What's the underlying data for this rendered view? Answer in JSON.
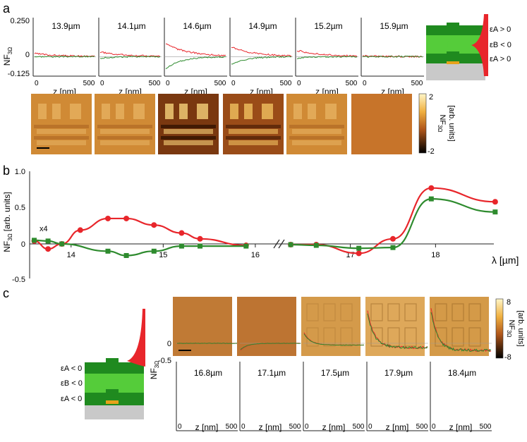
{
  "colors": {
    "red": "#e8262b",
    "green": "#2e8b2e",
    "dark_green": "#1f8a1f",
    "light_green": "#55cc3a",
    "substrate": "#c9c9c9",
    "gold": "#e6a21a"
  },
  "panel_a": {
    "letter": "a",
    "wavelengths": [
      "13.9µm",
      "14.1µm",
      "14.6µm",
      "14.9µm",
      "15.2µm",
      "15.9µm"
    ],
    "y_label": "NF",
    "y_label_sub": "3Ω",
    "y_ticks": [
      "0.250",
      "0",
      "-0.125"
    ],
    "x_ticks": [
      "0",
      "500"
    ],
    "x_label": "z [nm]",
    "colorbar": {
      "max": "2",
      "min": "-2",
      "label": "NF",
      "label_sub": "3Ω",
      "units": "[arb. units]"
    },
    "schematic_labels": [
      "εA > 0",
      "εB < 0",
      "εA > 0"
    ],
    "image_brightness": [
      0.55,
      0.6,
      0.9,
      0.85,
      0.7,
      0.25
    ]
  },
  "panel_b": {
    "letter": "b",
    "y_label": "NF",
    "y_label_sub": "3Ω",
    "y_units": "[arb. units]",
    "y_ticks": [
      "1.0",
      "0.5",
      "0",
      "-0.5"
    ],
    "x_label": "λ [µm]",
    "annotation": "x4",
    "x_ticks_left": [
      "14",
      "15",
      "16"
    ],
    "x_ticks_right": [
      "17",
      "18"
    ]
  },
  "panel_c": {
    "letter": "c",
    "wavelengths": [
      "16.8µm",
      "17.1µm",
      "17.5µm",
      "17.9µm",
      "18.4µm"
    ],
    "y_label": "NF",
    "y_label_sub": "3Ω",
    "y_ticks": [
      "0",
      "-0.5"
    ],
    "x_ticks": [
      "0",
      "500"
    ],
    "x_label": "z [nm]",
    "colorbar": {
      "max": "8",
      "min": "-8",
      "label": "NF",
      "label_sub": "3Ω",
      "units": "[arb. units]"
    },
    "schematic_labels": [
      "εA < 0",
      "εB < 0",
      "εA < 0"
    ],
    "image_brightness": [
      0.45,
      0.42,
      0.6,
      0.75,
      0.65
    ]
  },
  "chart_data": [
    {
      "type": "scatter",
      "title": "",
      "xlabel": "λ [µm]",
      "ylabel": "NF3Ω [arb. units]",
      "ylim": [
        -0.5,
        1.0
      ],
      "series": [
        {
          "name": "red",
          "x": [
            13.6,
            13.75,
            13.9,
            14.1,
            14.4,
            14.6,
            14.9,
            15.2,
            15.4,
            15.9
          ],
          "y": [
            0.04,
            -0.07,
            0.0,
            0.19,
            0.35,
            0.35,
            0.26,
            0.15,
            0.07,
            -0.02
          ]
        },
        {
          "name": "red",
          "x": [
            16.3,
            16.6,
            17.1,
            17.5,
            17.95,
            18.7
          ],
          "y": [
            -0.01,
            -0.01,
            -0.13,
            0.07,
            0.77,
            0.58
          ]
        },
        {
          "name": "green",
          "x": [
            13.6,
            13.75,
            13.9,
            14.4,
            14.6,
            14.9,
            15.2,
            15.4,
            15.9
          ],
          "y": [
            0.05,
            0.04,
            0.0,
            -0.1,
            -0.16,
            -0.1,
            -0.03,
            -0.03,
            -0.03
          ]
        },
        {
          "name": "green",
          "x": [
            16.3,
            16.6,
            17.1,
            17.5,
            17.95,
            18.7
          ],
          "y": [
            -0.01,
            -0.02,
            -0.06,
            -0.05,
            0.62,
            0.44
          ]
        }
      ]
    }
  ]
}
